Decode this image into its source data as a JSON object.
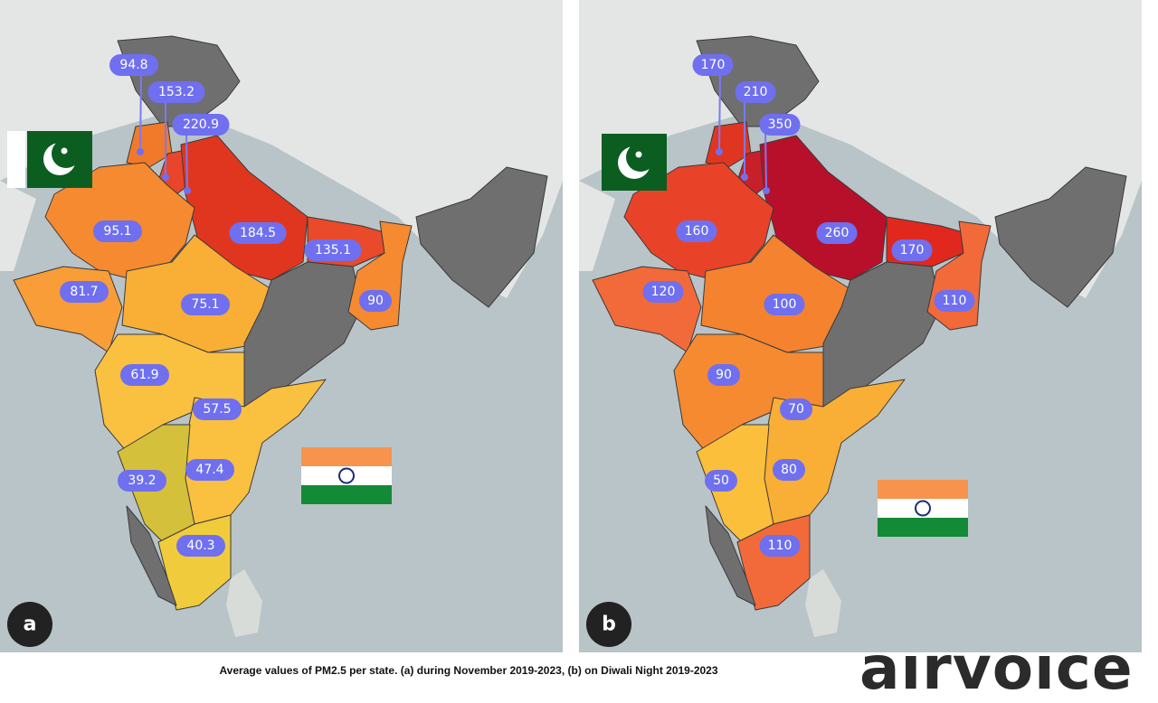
{
  "panels": [
    {
      "letter": "a",
      "labels": [
        "94.8",
        "153.2",
        "220.9",
        "95.1",
        "184.5",
        "135.1",
        "81.7",
        "75.1",
        "90",
        "61.9",
        "57.5",
        "47.4",
        "39.2",
        "40.3"
      ]
    },
    {
      "letter": "b",
      "labels": [
        "170",
        "210",
        "350",
        "160",
        "260",
        "170",
        "120",
        "100",
        "110",
        "90",
        "70",
        "80",
        "50",
        "110"
      ]
    }
  ],
  "caption": "Average values of PM2.5 per state. (a) during November 2019-2023, (b) on Diwali Night 2019-2023",
  "logo": "airvoice"
}
